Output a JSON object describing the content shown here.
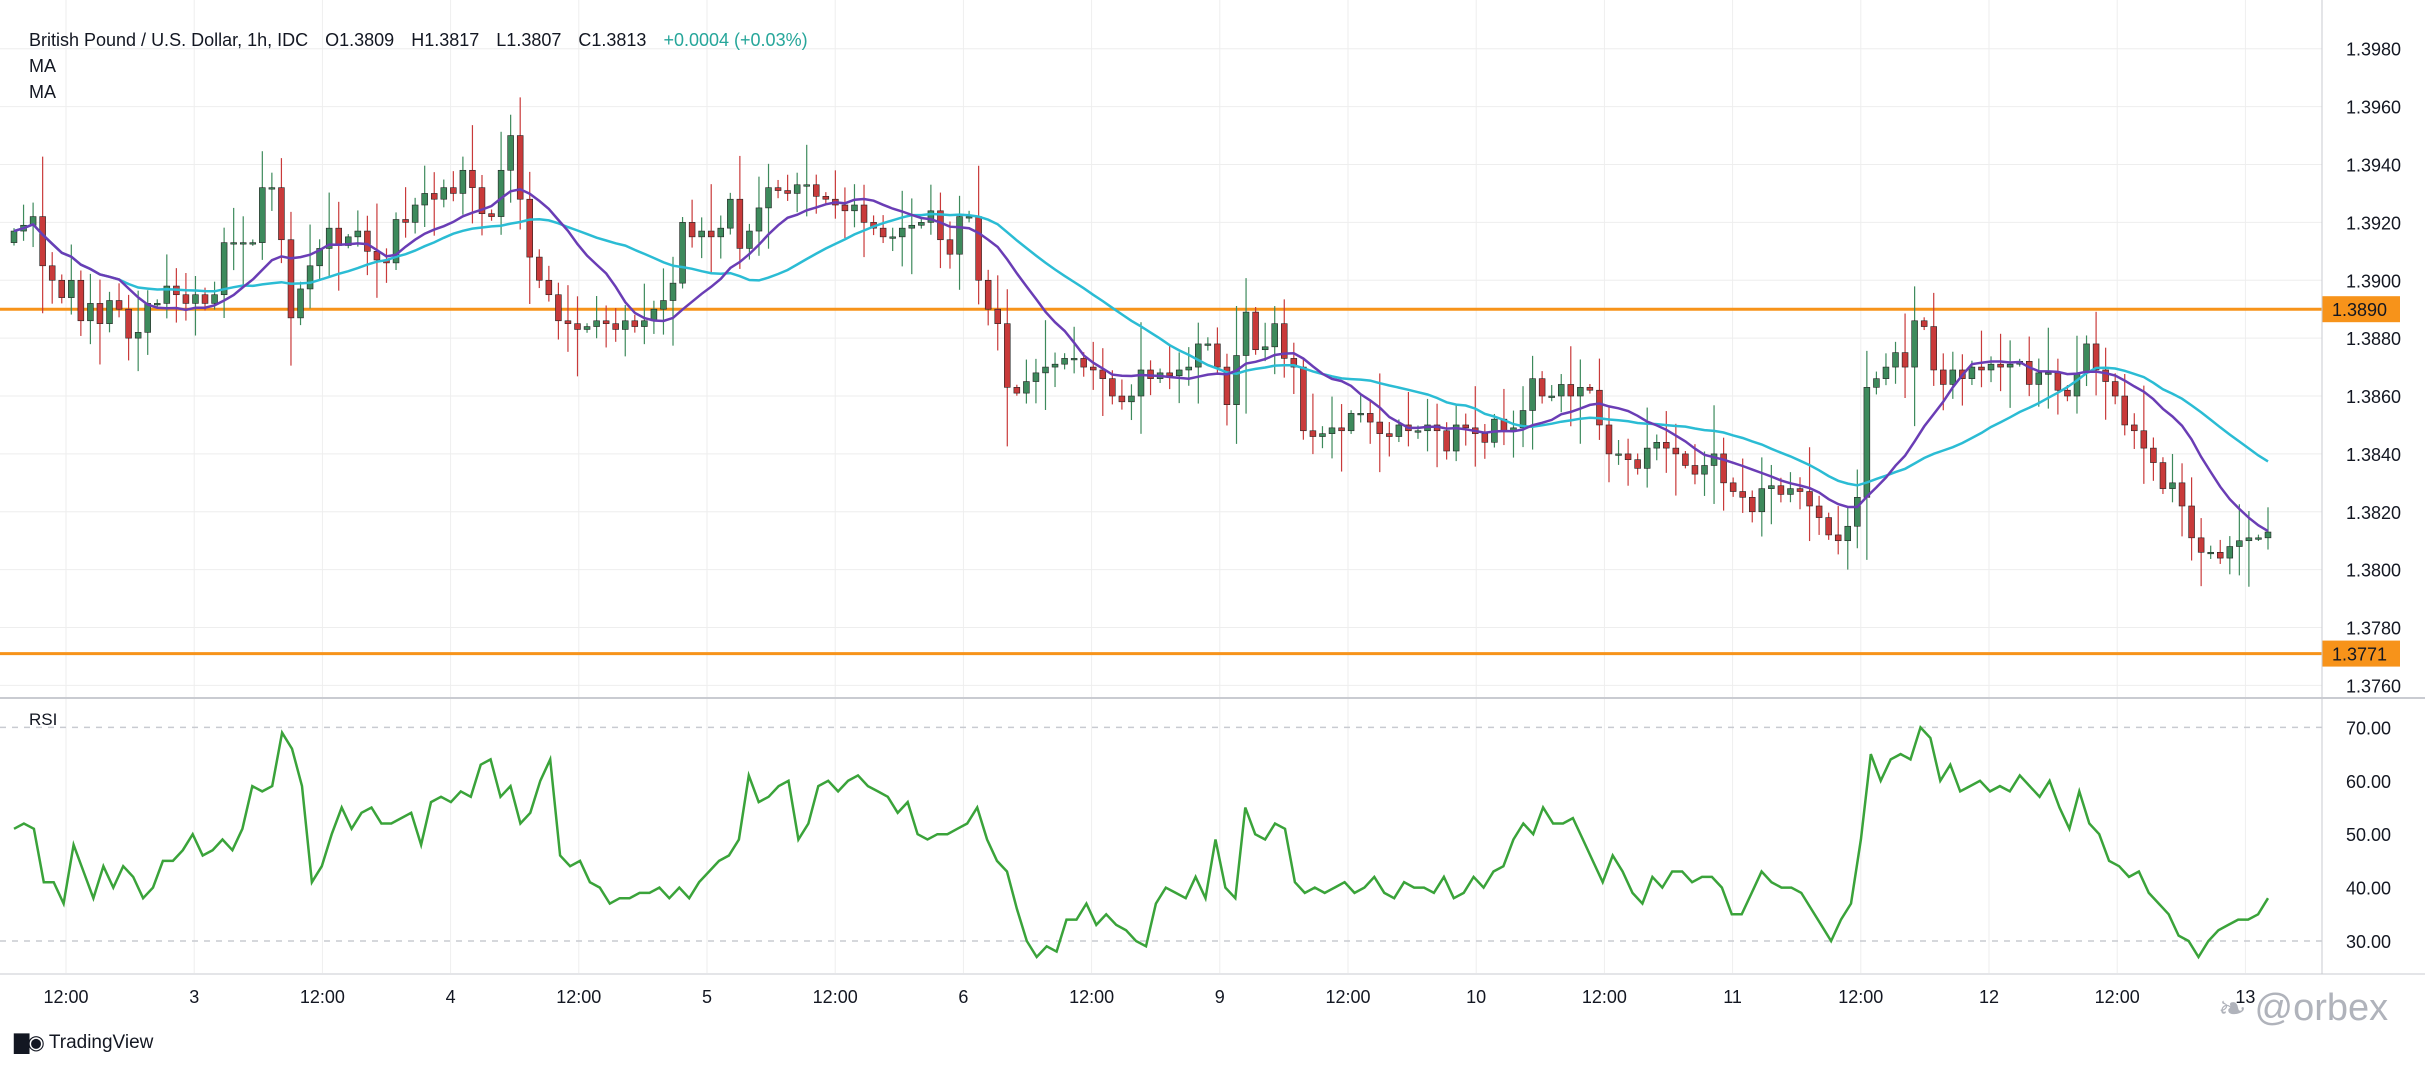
{
  "header": {
    "title": "British Pound / U.S. Dollar, 1h, IDC",
    "open": "O1.3809",
    "high": "H1.3817",
    "low": "L1.3807",
    "close": "C1.3813",
    "change": "+0.0004 (+0.03%)",
    "indicators": [
      "MA",
      "MA"
    ]
  },
  "rsi_label": "RSI",
  "branding": {
    "name": "TradingView",
    "watermark": "@orbex"
  },
  "colors": {
    "up": "#3d8a5c",
    "down": "#c93a3a",
    "ma_fast": "#6a3db5",
    "ma_slow": "#2bbcd4",
    "rsi": "#3aa33a",
    "level": "#f7931a",
    "grid": "#eeeeee",
    "axis_text": "#131722"
  },
  "chart_data": [
    {
      "type": "candlestick",
      "title": "British Pound / U.S. Dollar, 1h, IDC",
      "ylim": [
        1.3756,
        1.3992
      ],
      "y_ticks": [
        "1.3760",
        "1.3780",
        "1.3800",
        "1.3820",
        "1.3840",
        "1.3860",
        "1.3880",
        "1.3900",
        "1.3920",
        "1.3940",
        "1.3960",
        "1.3980"
      ],
      "x_ticks": [
        "12:00",
        "3",
        "12:00",
        "4",
        "12:00",
        "5",
        "12:00",
        "6",
        "12:00",
        "9",
        "12:00",
        "10",
        "12:00",
        "11",
        "12:00",
        "12",
        "12:00",
        "13"
      ],
      "horizontal_levels": [
        {
          "value": 1.389,
          "label": "1.3890"
        },
        {
          "value": 1.3771,
          "label": "1.3771"
        }
      ],
      "closes": [
        1.3917,
        1.3919,
        1.3922,
        1.3905,
        1.39,
        1.3894,
        1.39,
        1.3886,
        1.3892,
        1.3885,
        1.3893,
        1.389,
        1.388,
        1.3882,
        1.3892,
        1.3892,
        1.3898,
        1.3895,
        1.3892,
        1.3895,
        1.3892,
        1.3895,
        1.3913,
        1.3913,
        1.3913,
        1.3913,
        1.3932,
        1.3932,
        1.3914,
        1.3887,
        1.3897,
        1.3905,
        1.3911,
        1.3918,
        1.3912,
        1.3915,
        1.3917,
        1.391,
        1.3907,
        1.3906,
        1.3921,
        1.392,
        1.3926,
        1.393,
        1.3928,
        1.3932,
        1.393,
        1.3938,
        1.3932,
        1.3923,
        1.3922,
        1.3938,
        1.395,
        1.3928,
        1.3908,
        1.39,
        1.3895,
        1.3886,
        1.3885,
        1.3883,
        1.3884,
        1.3886,
        1.3885,
        1.3883,
        1.3886,
        1.3884,
        1.3886,
        1.389,
        1.3893,
        1.3899,
        1.392,
        1.3915,
        1.3917,
        1.3915,
        1.3918,
        1.3928,
        1.3911,
        1.3917,
        1.3925,
        1.3932,
        1.3931,
        1.393,
        1.3933,
        1.3933,
        1.3929,
        1.3928,
        1.3926,
        1.3924,
        1.3926,
        1.392,
        1.3918,
        1.3915,
        1.3915,
        1.3918,
        1.3919,
        1.392,
        1.3924,
        1.3914,
        1.3909,
        1.3922,
        1.3922,
        1.39,
        1.389,
        1.3885,
        1.3863,
        1.3861,
        1.3865,
        1.3868,
        1.387,
        1.3871,
        1.3873,
        1.3873,
        1.387,
        1.3869,
        1.3866,
        1.386,
        1.3858,
        1.386,
        1.3869,
        1.3866,
        1.3868,
        1.3867,
        1.3869,
        1.387,
        1.3878,
        1.3878,
        1.387,
        1.3857,
        1.3874,
        1.3889,
        1.3876,
        1.3877,
        1.3885,
        1.3873,
        1.387,
        1.3848,
        1.3846,
        1.3847,
        1.3849,
        1.3848,
        1.3854,
        1.3854,
        1.3851,
        1.3847,
        1.3846,
        1.385,
        1.3848,
        1.3848,
        1.385,
        1.3848,
        1.3841,
        1.385,
        1.3849,
        1.3847,
        1.3844,
        1.3852,
        1.3848,
        1.3849,
        1.3855,
        1.3866,
        1.386,
        1.386,
        1.3864,
        1.386,
        1.3863,
        1.3862,
        1.385,
        1.384,
        1.384,
        1.3838,
        1.3835,
        1.3842,
        1.3844,
        1.3842,
        1.384,
        1.3836,
        1.3833,
        1.3836,
        1.384,
        1.383,
        1.3827,
        1.3825,
        1.382,
        1.3828,
        1.3829,
        1.3826,
        1.3828,
        1.3827,
        1.3822,
        1.3818,
        1.3812,
        1.381,
        1.3815,
        1.3825,
        1.3863,
        1.3866,
        1.387,
        1.3875,
        1.387,
        1.3886,
        1.3884,
        1.3869,
        1.3864,
        1.3869,
        1.3866,
        1.387,
        1.3869,
        1.3871,
        1.387,
        1.3871,
        1.3872,
        1.3864,
        1.3868,
        1.3868,
        1.3862,
        1.386,
        1.3868,
        1.3878,
        1.3869,
        1.3865,
        1.386,
        1.385,
        1.3848,
        1.3842,
        1.3837,
        1.3828,
        1.383,
        1.3822,
        1.3811,
        1.3806,
        1.3806,
        1.3804,
        1.3808,
        1.381,
        1.3811,
        1.3811,
        1.3813
      ]
    },
    {
      "type": "line",
      "name": "RSI",
      "ylim": [
        24,
        74
      ],
      "y_ticks": [
        "30.00",
        "40.00",
        "50.00",
        "60.00",
        "70.00"
      ],
      "reference_levels": [
        30,
        70
      ],
      "values": [
        51,
        52,
        51,
        41,
        41,
        37,
        48,
        43,
        38,
        44,
        40,
        44,
        42,
        38,
        40,
        45,
        45,
        47,
        50,
        46,
        47,
        49,
        47,
        51,
        59,
        58,
        59,
        69,
        66,
        59,
        41,
        44,
        50,
        55,
        51,
        54,
        55,
        52,
        52,
        53,
        54,
        48,
        56,
        57,
        56,
        58,
        57,
        63,
        64,
        57,
        59,
        52,
        54,
        60,
        64,
        46,
        44,
        45,
        41,
        40,
        37,
        38,
        38,
        39,
        39,
        40,
        38,
        40,
        38,
        41,
        43,
        45,
        46,
        49,
        61,
        56,
        57,
        59,
        60,
        49,
        52,
        59,
        60,
        58,
        60,
        61,
        59,
        58,
        57,
        54,
        56,
        50,
        49,
        50,
        50,
        51,
        52,
        55,
        49,
        45,
        43,
        36,
        30,
        27,
        29,
        28,
        34,
        34,
        37,
        33,
        35,
        33,
        32,
        30,
        29,
        37,
        40,
        39,
        38,
        42,
        38,
        49,
        40,
        38,
        55,
        50,
        49,
        52,
        51,
        41,
        39,
        40,
        39,
        40,
        41,
        39,
        40,
        42,
        39,
        38,
        41,
        40,
        40,
        39,
        42,
        38,
        39,
        42,
        40,
        43,
        44,
        49,
        52,
        50,
        55,
        52,
        52,
        53,
        49,
        45,
        41,
        46,
        43,
        39,
        37,
        42,
        40,
        43,
        43,
        41,
        42,
        42,
        40,
        35,
        35,
        39,
        43,
        41,
        40,
        40,
        39,
        36,
        33,
        30,
        34,
        37,
        49,
        65,
        60,
        64,
        65,
        64,
        70,
        68,
        60,
        63,
        58,
        59,
        60,
        58,
        59,
        58,
        61,
        59,
        57,
        60,
        55,
        51,
        58,
        52,
        50,
        45,
        44,
        42,
        43,
        39,
        37,
        35,
        31,
        30,
        27,
        30,
        32,
        33,
        34,
        34,
        35,
        38
      ]
    }
  ]
}
